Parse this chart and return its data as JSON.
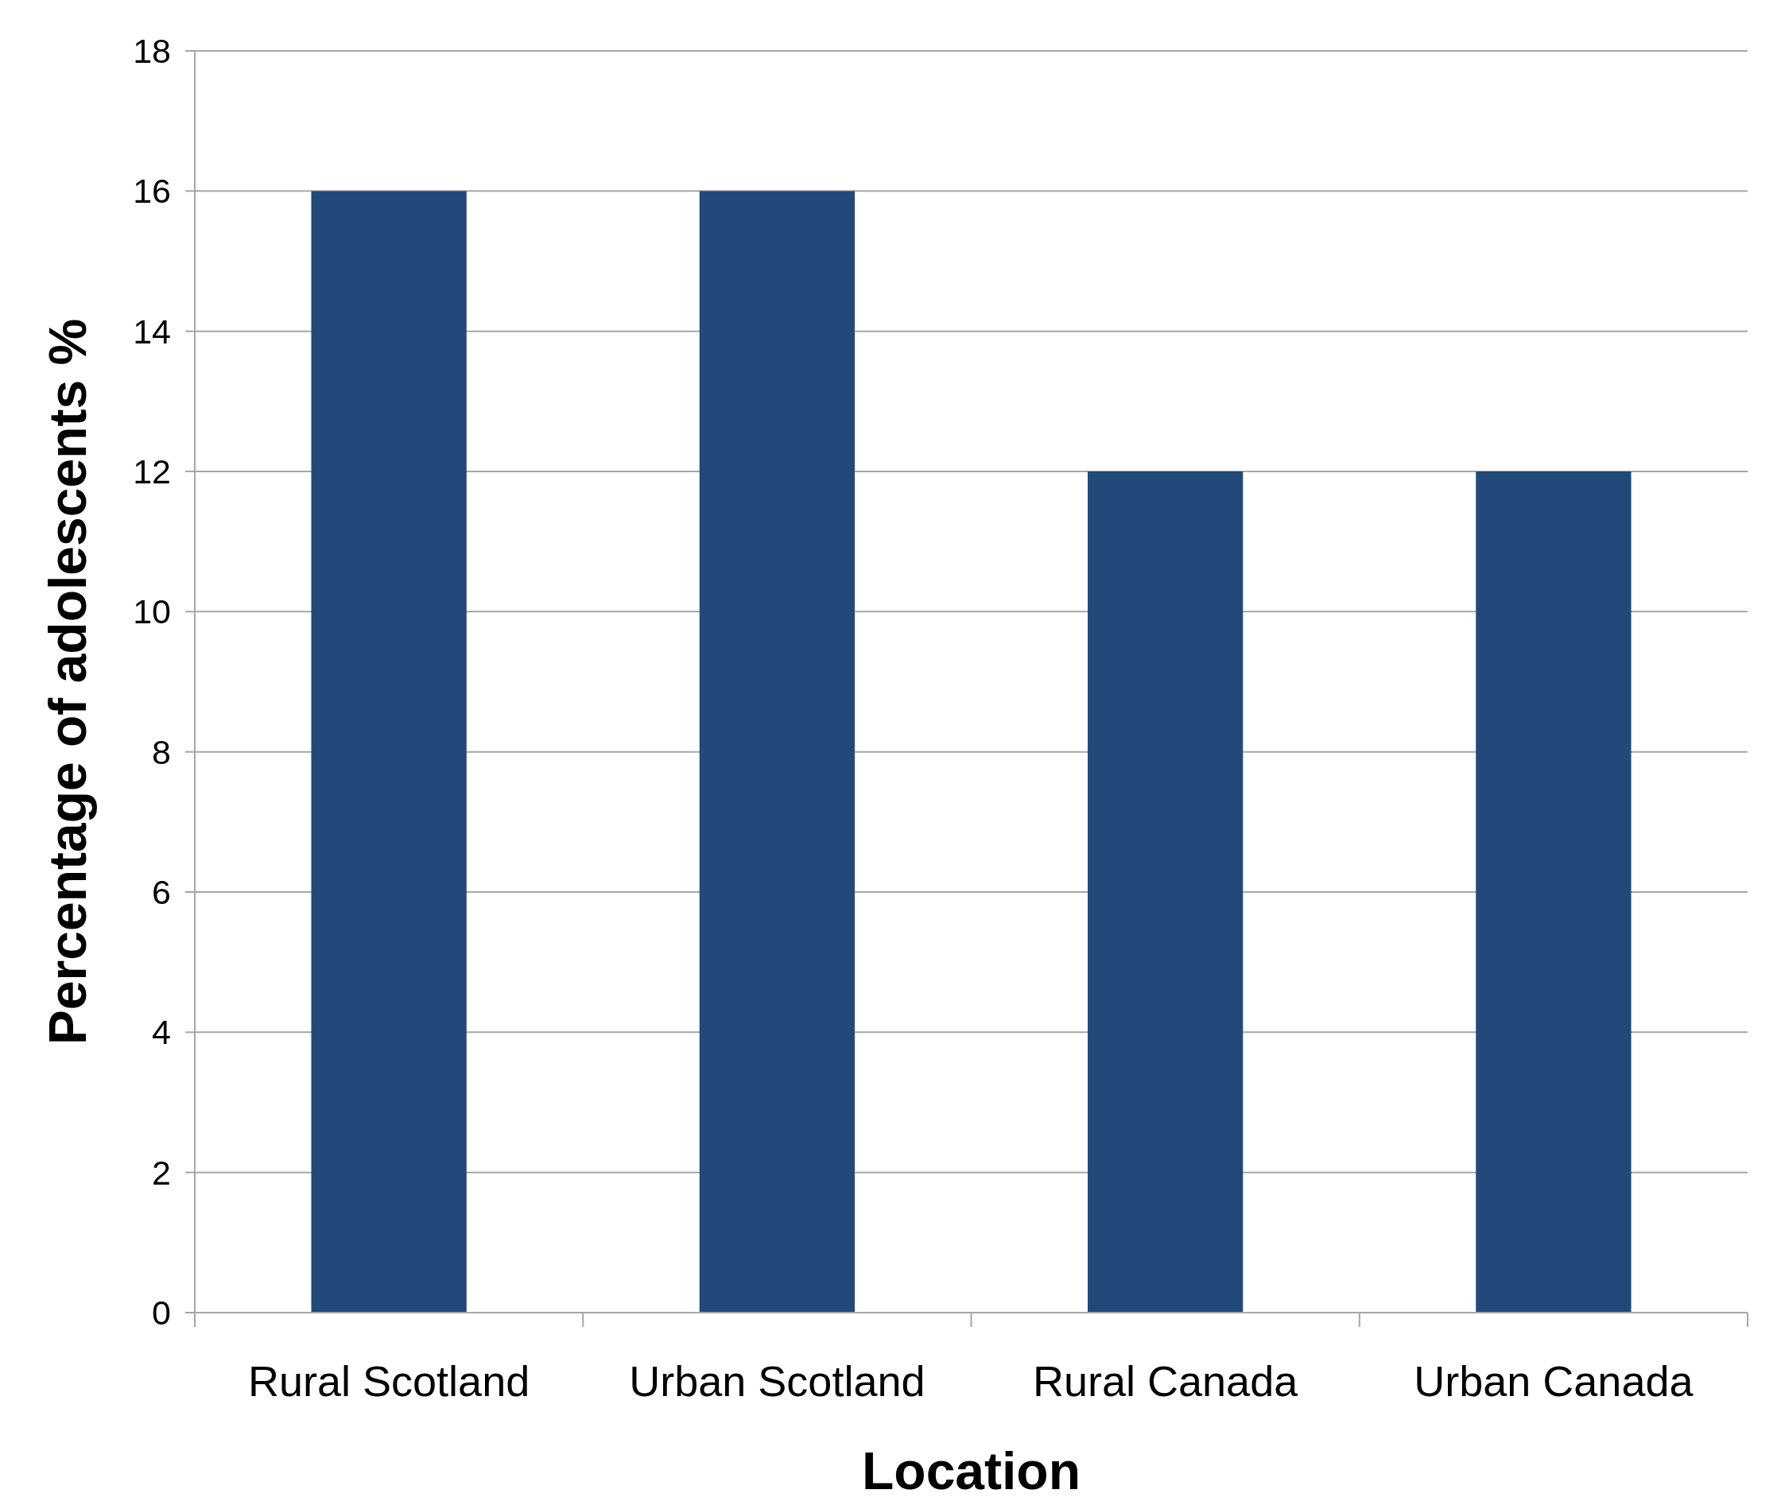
{
  "chart_data": {
    "type": "bar",
    "xlabel": "Location",
    "ylabel": "Percentage of adolescents %",
    "categories": [
      "Rural Scotland",
      "Urban Scotland",
      "Rural Canada",
      "Urban Canada"
    ],
    "values": [
      16,
      16,
      12,
      12
    ],
    "color": "#214a7b",
    "ylim": [
      0,
      18
    ],
    "yticks": [
      0,
      2,
      4,
      6,
      8,
      10,
      12,
      14,
      16,
      18
    ],
    "grid": "y"
  }
}
